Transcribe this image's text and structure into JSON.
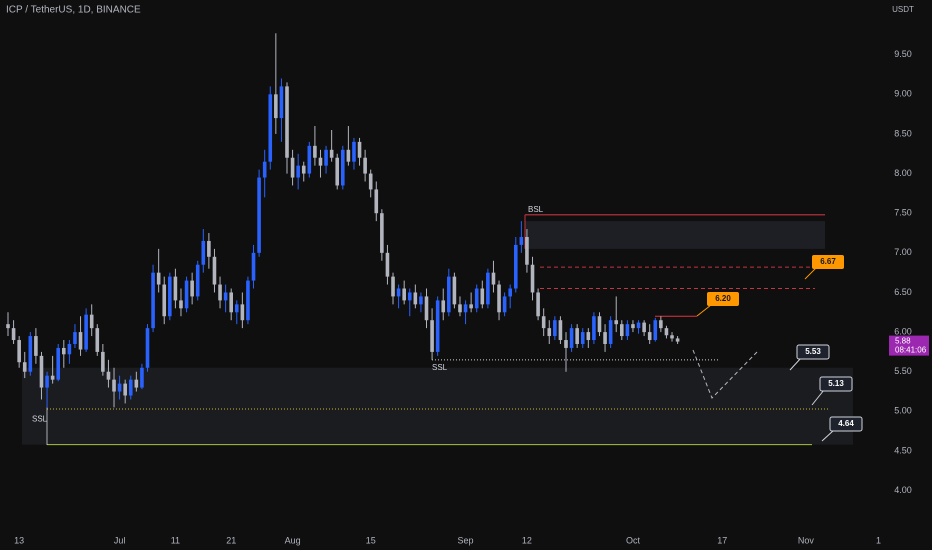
{
  "chart_data": {
    "type": "candlestick",
    "title": "ICP / TetherUS, 1D, BINANCE",
    "currency": "USDT",
    "up_color": "#2962ff",
    "down_color": "#b2b5be",
    "ylim": [
      3.44,
      10.19
    ],
    "yticks": [
      {
        "value": 4,
        "label": "4.00"
      },
      {
        "value": 4.5,
        "label": "4.50"
      },
      {
        "value": 5,
        "label": "5.00"
      },
      {
        "value": 5.5,
        "label": "5.50"
      },
      {
        "value": 6,
        "label": "6.00"
      },
      {
        "value": 6.5,
        "label": "6.50"
      },
      {
        "value": 7,
        "label": "7.00"
      },
      {
        "value": 7.5,
        "label": "7.50"
      },
      {
        "value": 8,
        "label": "8.00"
      },
      {
        "value": 8.5,
        "label": "8.50"
      },
      {
        "value": 9,
        "label": "9.00"
      },
      {
        "value": 9.5,
        "label": "9.50"
      }
    ],
    "grid": false,
    "categories": [
      null,
      null,
      "13",
      null,
      null,
      null,
      null,
      null,
      null,
      null,
      null,
      null,
      null,
      null,
      null,
      null,
      null,
      null,
      null,
      null,
      "Jul",
      null,
      null,
      null,
      null,
      null,
      null,
      null,
      null,
      null,
      "11",
      null,
      null,
      null,
      null,
      null,
      null,
      null,
      null,
      null,
      "21",
      null,
      null,
      null,
      null,
      null,
      null,
      null,
      null,
      null,
      null,
      "Aug",
      null,
      null,
      null,
      null,
      null,
      null,
      null,
      null,
      null,
      null,
      null,
      null,
      null,
      "15",
      null,
      null,
      null,
      null,
      null,
      null,
      null,
      null,
      null,
      null,
      null,
      null,
      null,
      null,
      null,
      null,
      "Sep",
      null,
      null,
      null,
      null,
      null,
      null,
      null,
      null,
      null,
      null,
      "12",
      null,
      null,
      null,
      null,
      null,
      null,
      null,
      null,
      null,
      null,
      null,
      null,
      null,
      null,
      null,
      null,
      null,
      null,
      "Oct",
      null,
      null,
      null,
      null,
      null,
      null,
      null,
      null,
      null,
      null,
      null,
      null,
      null,
      null,
      null,
      "17",
      null,
      null,
      null,
      null,
      null,
      null,
      null,
      null,
      null,
      null,
      null,
      null,
      null,
      null,
      "Nov",
      null,
      null,
      null,
      null,
      null,
      null,
      null,
      null,
      null,
      null,
      null,
      null,
      "1"
    ],
    "candles": [
      [
        6.1,
        6.25,
        5.95,
        6.05
      ],
      [
        6.05,
        6.15,
        5.85,
        5.9
      ],
      [
        5.9,
        5.95,
        5.55,
        5.62
      ],
      [
        5.62,
        5.75,
        5.42,
        5.5
      ],
      [
        5.5,
        6.0,
        5.45,
        5.95
      ],
      [
        5.95,
        6.05,
        5.6,
        5.7
      ],
      [
        5.7,
        5.75,
        5.15,
        5.3
      ],
      [
        5.3,
        5.5,
        5.05,
        5.45
      ],
      [
        5.45,
        5.7,
        5.35,
        5.4
      ],
      [
        5.4,
        5.85,
        5.38,
        5.8
      ],
      [
        5.8,
        5.9,
        5.55,
        5.72
      ],
      [
        5.72,
        5.9,
        5.6,
        5.85
      ],
      [
        5.85,
        6.1,
        5.8,
        6.0
      ],
      [
        6.0,
        6.2,
        5.7,
        5.78
      ],
      [
        5.78,
        6.3,
        5.75,
        6.22
      ],
      [
        6.22,
        6.35,
        5.95,
        6.05
      ],
      [
        6.05,
        6.1,
        5.7,
        5.75
      ],
      [
        5.75,
        5.85,
        5.45,
        5.5
      ],
      [
        5.5,
        5.65,
        5.3,
        5.4
      ],
      [
        5.4,
        5.55,
        5.05,
        5.25
      ],
      [
        5.25,
        5.45,
        5.15,
        5.35
      ],
      [
        5.35,
        5.4,
        5.1,
        5.2
      ],
      [
        5.2,
        5.45,
        5.15,
        5.4
      ],
      [
        5.4,
        5.5,
        5.25,
        5.3
      ],
      [
        5.3,
        5.6,
        5.28,
        5.55
      ],
      [
        5.55,
        6.1,
        5.5,
        6.05
      ],
      [
        6.05,
        6.85,
        6.0,
        6.75
      ],
      [
        6.75,
        7.05,
        6.5,
        6.6
      ],
      [
        6.6,
        6.7,
        6.1,
        6.2
      ],
      [
        6.2,
        6.75,
        6.15,
        6.7
      ],
      [
        6.7,
        6.8,
        6.3,
        6.4
      ],
      [
        6.4,
        6.55,
        6.2,
        6.3
      ],
      [
        6.3,
        6.7,
        6.25,
        6.65
      ],
      [
        6.65,
        6.75,
        6.35,
        6.45
      ],
      [
        6.45,
        6.9,
        6.4,
        6.85
      ],
      [
        6.85,
        7.3,
        6.75,
        7.15
      ],
      [
        7.15,
        7.25,
        6.8,
        6.95
      ],
      [
        6.95,
        7.05,
        6.5,
        6.6
      ],
      [
        6.6,
        6.7,
        6.3,
        6.4
      ],
      [
        6.4,
        6.6,
        6.25,
        6.5
      ],
      [
        6.5,
        6.55,
        6.15,
        6.25
      ],
      [
        6.25,
        6.4,
        6.1,
        6.35
      ],
      [
        6.35,
        6.5,
        6.05,
        6.15
      ],
      [
        6.15,
        6.7,
        6.1,
        6.65
      ],
      [
        6.65,
        7.1,
        6.55,
        7.0
      ],
      [
        7.0,
        8.05,
        6.95,
        7.95
      ],
      [
        7.95,
        8.3,
        7.7,
        8.15
      ],
      [
        8.15,
        9.1,
        8.05,
        9.0
      ],
      [
        9.0,
        9.77,
        8.5,
        8.7
      ],
      [
        8.7,
        9.2,
        8.4,
        9.1
      ],
      [
        9.1,
        9.15,
        8.0,
        8.2
      ],
      [
        8.2,
        8.3,
        7.85,
        7.95
      ],
      [
        7.95,
        8.25,
        7.8,
        8.1
      ],
      [
        8.1,
        8.15,
        7.9,
        8.0
      ],
      [
        8.0,
        8.4,
        7.95,
        8.35
      ],
      [
        8.35,
        8.6,
        8.1,
        8.2
      ],
      [
        8.2,
        8.3,
        7.95,
        8.1
      ],
      [
        8.1,
        8.35,
        8.0,
        8.3
      ],
      [
        8.3,
        8.55,
        8.15,
        8.2
      ],
      [
        8.2,
        8.25,
        7.8,
        7.85
      ],
      [
        7.85,
        8.35,
        7.8,
        8.3
      ],
      [
        8.3,
        8.6,
        8.1,
        8.15
      ],
      [
        8.15,
        8.45,
        8.05,
        8.4
      ],
      [
        8.4,
        8.45,
        8.1,
        8.2
      ],
      [
        8.2,
        8.3,
        7.9,
        8.0
      ],
      [
        8.0,
        8.05,
        7.7,
        7.8
      ],
      [
        7.8,
        7.9,
        7.4,
        7.5
      ],
      [
        7.5,
        7.55,
        6.9,
        7.0
      ],
      [
        7.0,
        7.1,
        6.6,
        6.7
      ],
      [
        6.7,
        6.75,
        6.35,
        6.45
      ],
      [
        6.45,
        6.6,
        6.3,
        6.55
      ],
      [
        6.55,
        6.65,
        6.35,
        6.4
      ],
      [
        6.4,
        6.55,
        6.2,
        6.5
      ],
      [
        6.5,
        6.6,
        6.3,
        6.35
      ],
      [
        6.35,
        6.5,
        6.25,
        6.45
      ],
      [
        6.45,
        6.55,
        6.05,
        6.15
      ],
      [
        6.15,
        6.3,
        5.65,
        5.75
      ],
      [
        5.75,
        6.45,
        5.7,
        6.4
      ],
      [
        6.4,
        6.55,
        6.15,
        6.25
      ],
      [
        6.25,
        6.8,
        6.2,
        6.7
      ],
      [
        6.7,
        6.75,
        6.3,
        6.35
      ],
      [
        6.35,
        6.45,
        6.2,
        6.25
      ],
      [
        6.25,
        6.4,
        6.1,
        6.35
      ],
      [
        6.35,
        6.5,
        6.25,
        6.3
      ],
      [
        6.3,
        6.6,
        6.25,
        6.55
      ],
      [
        6.55,
        6.65,
        6.3,
        6.35
      ],
      [
        6.35,
        6.8,
        6.3,
        6.75
      ],
      [
        6.75,
        6.9,
        6.5,
        6.6
      ],
      [
        6.6,
        6.65,
        6.15,
        6.25
      ],
      [
        6.25,
        6.5,
        6.2,
        6.45
      ],
      [
        6.45,
        6.6,
        6.3,
        6.55
      ],
      [
        6.55,
        7.2,
        6.5,
        7.1
      ],
      [
        7.1,
        7.4,
        7.0,
        7.2
      ],
      [
        7.2,
        7.3,
        6.75,
        6.85
      ],
      [
        6.85,
        6.95,
        6.4,
        6.5
      ],
      [
        6.5,
        6.55,
        6.15,
        6.2
      ],
      [
        6.2,
        6.3,
        5.95,
        6.05
      ],
      [
        6.05,
        6.15,
        5.85,
        5.95
      ],
      [
        5.95,
        6.2,
        5.9,
        6.15
      ],
      [
        6.15,
        6.2,
        5.85,
        5.9
      ],
      [
        5.9,
        6.0,
        5.5,
        5.8
      ],
      [
        5.8,
        6.1,
        5.75,
        6.05
      ],
      [
        6.05,
        6.1,
        5.8,
        5.85
      ],
      [
        5.85,
        6.05,
        5.8,
        6.0
      ],
      [
        6.0,
        6.05,
        5.8,
        5.9
      ],
      [
        5.9,
        6.25,
        5.85,
        6.2
      ],
      [
        6.2,
        6.25,
        5.95,
        6.0
      ],
      [
        6.0,
        6.1,
        5.75,
        5.85
      ],
      [
        5.85,
        6.2,
        5.8,
        6.15
      ],
      [
        6.15,
        6.45,
        6.0,
        6.1
      ],
      [
        6.1,
        6.15,
        5.9,
        5.95
      ],
      [
        5.95,
        6.15,
        5.9,
        6.1
      ],
      [
        6.1,
        6.15,
        6.0,
        6.05
      ],
      [
        6.05,
        6.15,
        5.98,
        6.12
      ],
      [
        6.12,
        6.15,
        5.95,
        6.0
      ],
      [
        6.0,
        6.1,
        5.85,
        5.9
      ],
      [
        5.9,
        6.18,
        5.88,
        6.15
      ],
      [
        6.15,
        6.2,
        6.0,
        6.05
      ],
      [
        6.05,
        6.08,
        5.92,
        5.96
      ],
      [
        5.96,
        6.0,
        5.88,
        5.92
      ],
      [
        5.92,
        5.95,
        5.85,
        5.88
      ],
      null,
      null,
      null,
      null,
      null,
      null,
      null,
      null,
      null,
      null,
      null,
      null,
      null,
      null,
      null,
      null,
      null,
      null,
      null,
      null,
      null,
      null,
      null,
      null,
      null,
      null,
      null,
      null,
      null,
      null,
      null,
      null,
      null,
      null,
      null
    ],
    "bsl": {
      "label": "BSL",
      "value": 7.48
    },
    "ssl": [
      {
        "label": "SSL",
        "value": 5.05
      },
      {
        "label": "SSL",
        "value": 5.65
      }
    ],
    "zones": [
      {
        "low": 7.05,
        "high": 7.4,
        "color": "#1e1f24"
      },
      {
        "low": 4.58,
        "high": 5.55,
        "color": "#1b1c20"
      }
    ],
    "lines": [
      {
        "value": 6.82,
        "color": "#c2363f"
      },
      {
        "value": 6.55,
        "color": "#c2363f"
      },
      {
        "value": 6.2,
        "color": "#e0343f"
      },
      {
        "value": 5.03,
        "color": "#c9b92c"
      },
      {
        "value": 4.58,
        "color": "#a8c43a"
      }
    ],
    "targets": [
      {
        "value": 6.67,
        "label": "6.67",
        "color": "#ff9800"
      },
      {
        "value": 6.2,
        "label": "6.20",
        "color": "#ff9800"
      },
      {
        "value": 5.53,
        "label": "5.53",
        "color": "#1e222d"
      },
      {
        "value": 5.13,
        "label": "5.13",
        "color": "#1e222d"
      },
      {
        "value": 4.64,
        "label": "4.64",
        "color": "#1e222d"
      }
    ],
    "last_price": {
      "value": 5.88,
      "label": "5.88",
      "color": "#9c27b0"
    },
    "countdown": "08:41:06"
  }
}
